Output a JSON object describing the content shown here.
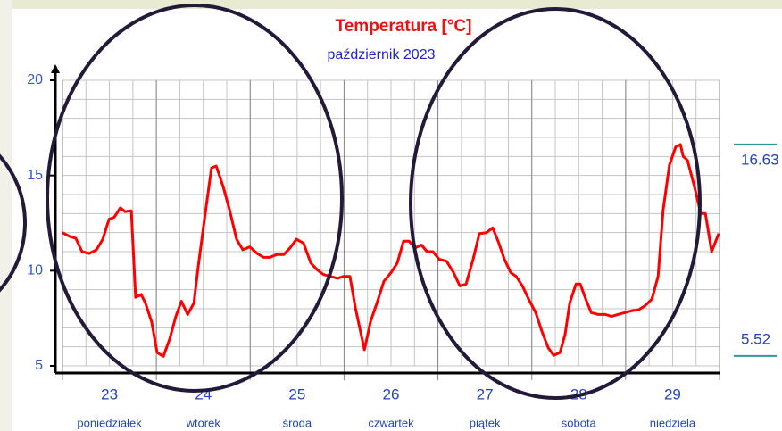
{
  "chart_data": {
    "type": "line",
    "title": "Temperatura [°C]",
    "subtitle": "październik 2023",
    "xlim": [
      0,
      168
    ],
    "ylim": [
      5,
      20
    ],
    "yticks": [
      5,
      10,
      15,
      20
    ],
    "xticks": [
      {
        "value": 12,
        "label": "23"
      },
      {
        "value": 36,
        "label": "24"
      },
      {
        "value": 60,
        "label": "25"
      },
      {
        "value": 84,
        "label": "26"
      },
      {
        "value": 108,
        "label": "27"
      },
      {
        "value": 132,
        "label": "28"
      },
      {
        "value": 156,
        "label": "29"
      }
    ],
    "weekdays": [
      "poniedziałek",
      "wtorek",
      "środa",
      "czwartek",
      "piątek",
      "sobota",
      "niedziela"
    ],
    "xgrid": [
      0,
      6,
      12,
      18,
      24,
      30,
      36,
      42,
      48,
      54,
      60,
      66,
      72,
      78,
      84,
      90,
      96,
      102,
      108,
      114,
      120,
      126,
      132,
      138,
      144,
      150,
      156,
      162,
      168
    ],
    "ygrid": [
      5,
      6,
      7,
      8,
      9,
      10,
      11,
      12,
      13,
      14,
      15,
      16,
      17,
      18,
      19,
      20
    ],
    "daybounds": [
      0,
      24,
      48,
      72,
      96,
      120,
      144,
      168
    ],
    "grid": true,
    "markers": [
      {
        "value": 16.63
      },
      {
        "value": 5.52
      }
    ],
    "series": [
      {
        "color": "#ff0000",
        "x": [
          0,
          1.8,
          3.4,
          5.0,
          6.8,
          8.7,
          10.3,
          11.9,
          13.2,
          14.8,
          16.0,
          17.6,
          18.7,
          20.1,
          21.2,
          22.8,
          24.2,
          25.8,
          27.4,
          29.0,
          30.4,
          32.0,
          33.6,
          34.7,
          36.5,
          38.1,
          39.3,
          41.1,
          42.7,
          44.5,
          46.1,
          47.9,
          49.8,
          51.4,
          53.0,
          54.8,
          56.6,
          58.2,
          59.8,
          61.6,
          63.5,
          65.1,
          66.7,
          68.5,
          70.3,
          71.9,
          73.5,
          74.9,
          77.2,
          78.8,
          80.4,
          82.2,
          84.0,
          85.6,
          87.2,
          88.6,
          90.2,
          91.8,
          93.2,
          94.7,
          96.3,
          98.2,
          100.0,
          101.6,
          103.2,
          105.0,
          106.6,
          108.4,
          110.0,
          111.4,
          113.0,
          114.6,
          116.0,
          117.6,
          119.2,
          121.0,
          122.6,
          124.2,
          125.6,
          127.2,
          128.5,
          129.7,
          131.3,
          132.4,
          133.8,
          135.2,
          137.0,
          138.8,
          140.4,
          142.0,
          143.8,
          145.7,
          147.3,
          148.9,
          150.7,
          152.3,
          153.6,
          155.2,
          156.8,
          158.0,
          158.7,
          159.8,
          161.6,
          163.2,
          164.4,
          166.0,
          167.8
        ],
        "values": [
          12.0,
          11.8,
          11.7,
          11.0,
          10.9,
          11.1,
          11.65,
          12.7,
          12.8,
          13.3,
          13.1,
          13.15,
          8.6,
          8.75,
          8.3,
          7.3,
          5.7,
          5.5,
          6.4,
          7.6,
          8.4,
          7.7,
          8.3,
          10.2,
          13.0,
          15.4,
          15.5,
          14.4,
          13.2,
          11.65,
          11.1,
          11.25,
          10.9,
          10.7,
          10.7,
          10.85,
          10.85,
          11.2,
          11.65,
          11.45,
          10.4,
          10.05,
          9.8,
          9.7,
          9.6,
          9.7,
          9.7,
          8.05,
          5.85,
          7.35,
          8.3,
          9.45,
          9.9,
          10.4,
          11.55,
          11.55,
          11.2,
          11.35,
          11.0,
          11.0,
          10.6,
          10.5,
          9.9,
          9.2,
          9.3,
          10.6,
          11.95,
          12.0,
          12.25,
          11.55,
          10.6,
          9.9,
          9.7,
          9.2,
          8.5,
          7.8,
          6.8,
          5.95,
          5.55,
          5.7,
          6.65,
          8.3,
          9.3,
          9.3,
          8.5,
          7.8,
          7.7,
          7.7,
          7.6,
          7.7,
          7.8,
          7.9,
          7.95,
          8.15,
          8.5,
          9.7,
          13.2,
          15.55,
          16.5,
          16.63,
          16.0,
          15.8,
          14.4,
          13.0,
          13.0,
          11.0,
          11.95
        ]
      }
    ]
  }
}
